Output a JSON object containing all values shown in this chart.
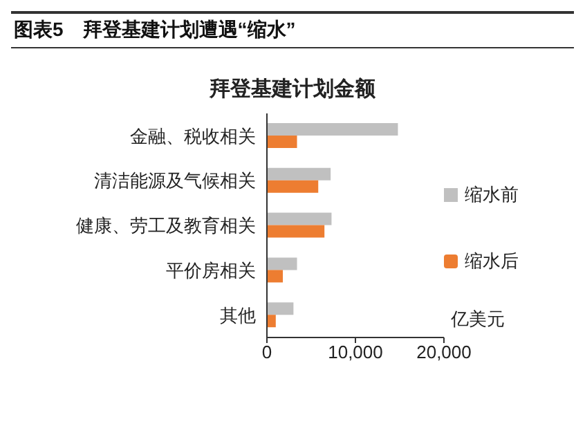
{
  "chart_data": {
    "type": "bar",
    "orientation": "horizontal",
    "title": "图表5　拜登基建计划遭遇“缩水”",
    "subtitle": "拜登基建计划金额",
    "xlabel": "亿美元",
    "categories": [
      "金融、税收相关",
      "清洁能源及气候相关",
      "健康、劳工及教育相关",
      "平价房相关",
      "其他"
    ],
    "series": [
      {
        "name": "缩水前",
        "color": "#c0c0c0",
        "values": [
          14800,
          7200,
          7300,
          3400,
          3000
        ]
      },
      {
        "name": "缩水后",
        "color": "#ed7d31",
        "values": [
          3400,
          5800,
          6500,
          1800,
          1000
        ]
      }
    ],
    "xlim": [
      0,
      20000
    ],
    "xticks": [
      0,
      {
        "value": 10000,
        "label": "10,000"
      },
      {
        "value": 20000,
        "label": "20,000"
      }
    ],
    "legend": "right"
  }
}
